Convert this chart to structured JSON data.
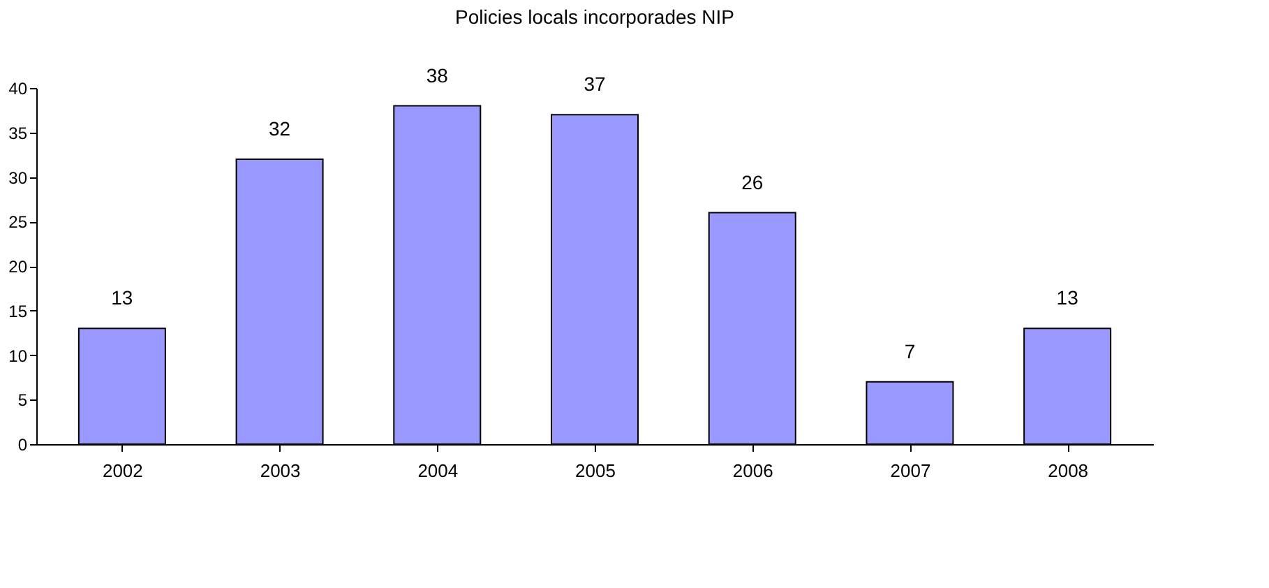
{
  "chart_data": {
    "type": "bar",
    "title": "Policies locals incorporades NIP",
    "categories": [
      "2002",
      "2003",
      "2004",
      "2005",
      "2006",
      "2007",
      "2008"
    ],
    "values": [
      13,
      32,
      38,
      37,
      26,
      7,
      13
    ],
    "color": "#9999ff",
    "ylim": [
      0,
      40
    ],
    "yticks": [
      0,
      5,
      10,
      15,
      20,
      25,
      30,
      35,
      40
    ],
    "data_labels": true,
    "grid": false
  }
}
